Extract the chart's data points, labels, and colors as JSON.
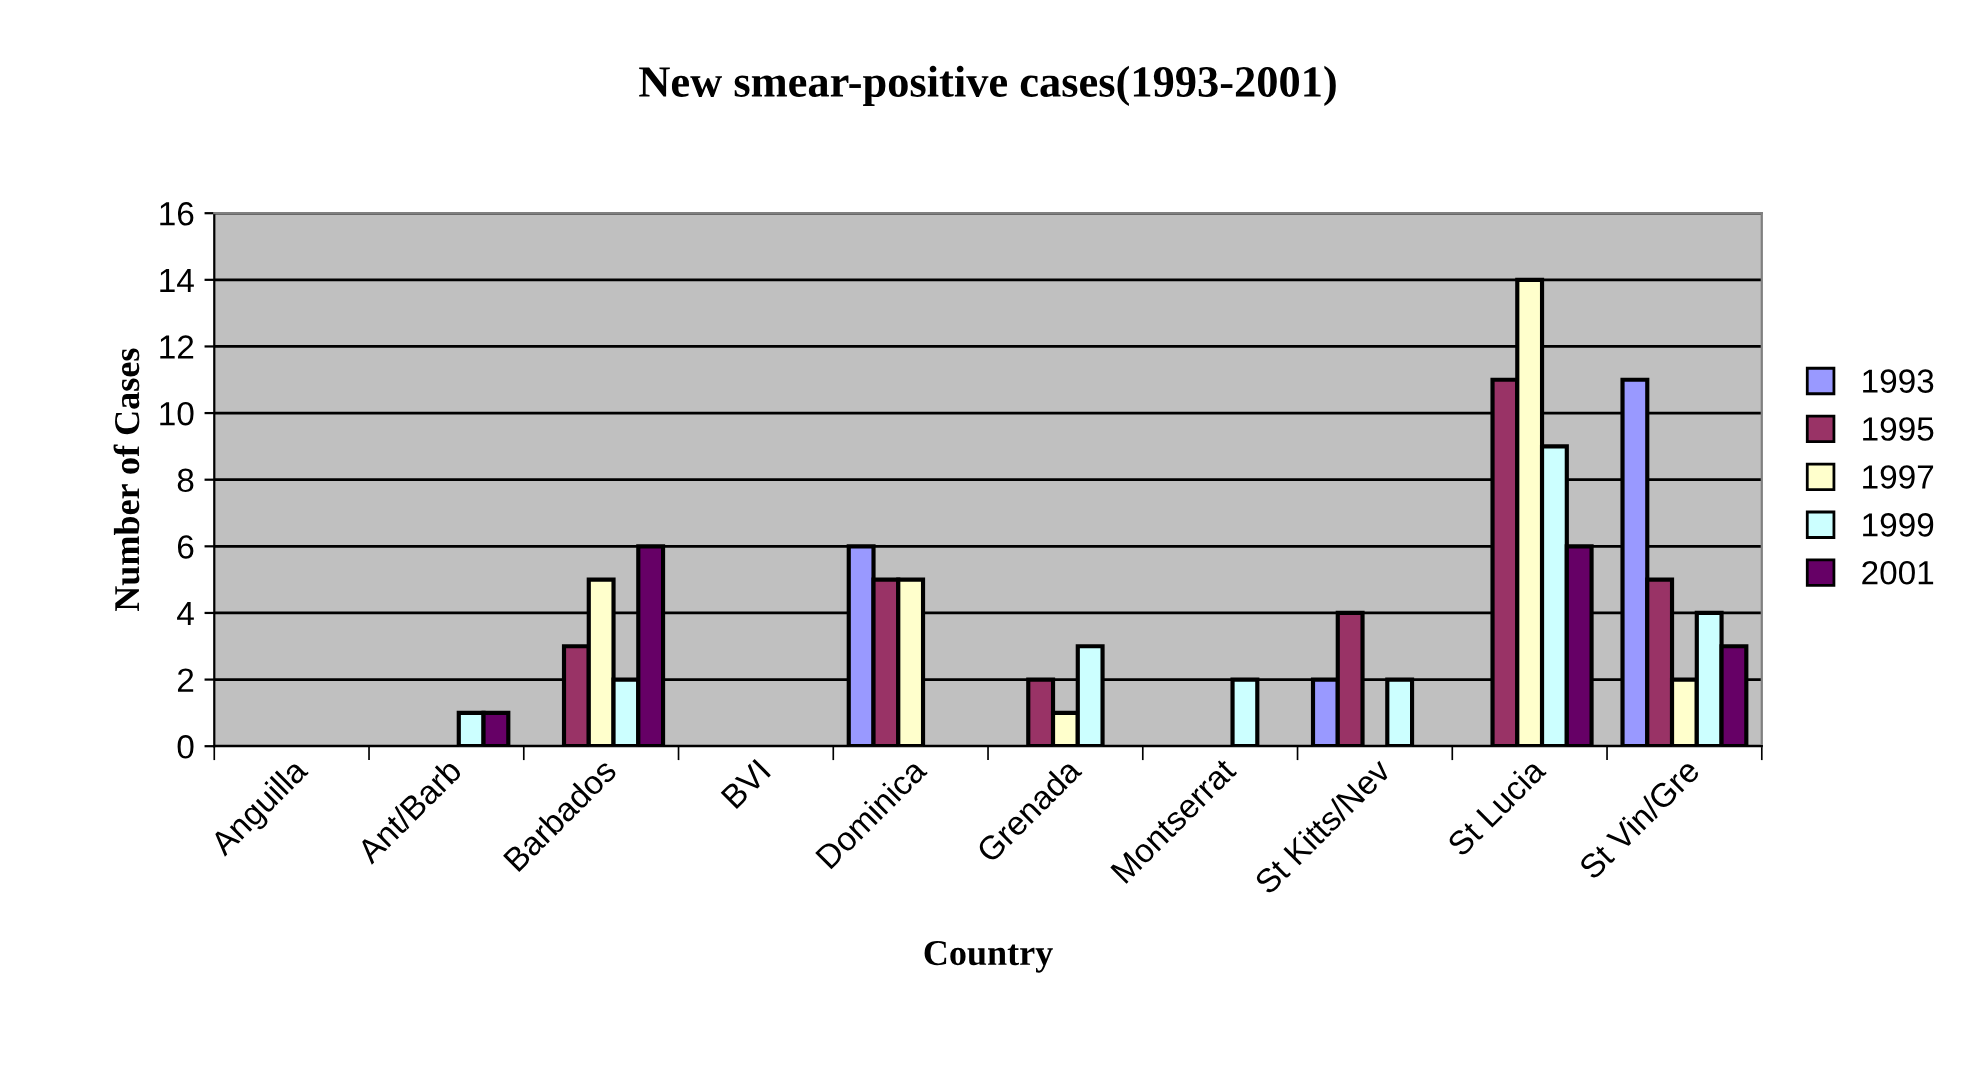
{
  "chart_data": {
    "type": "bar",
    "title": "New smear-positive cases(1993-2001)",
    "xlabel": "Country",
    "ylabel": "Number of Cases",
    "categories": [
      "Anguilla",
      "Ant/Barb",
      "Barbados",
      "BVI",
      "Dominica",
      "Grenada",
      "Montserrat",
      "St Kitts/Nev",
      "St Lucia",
      "St Vin/Gre"
    ],
    "series": [
      {
        "name": "1993",
        "color": "#9999ff",
        "values": [
          null,
          null,
          null,
          null,
          6,
          null,
          null,
          2,
          null,
          11
        ]
      },
      {
        "name": "1995",
        "color": "#993366",
        "values": [
          null,
          null,
          3,
          null,
          5,
          2,
          null,
          4,
          11,
          5
        ]
      },
      {
        "name": "1997",
        "color": "#ffffcc",
        "values": [
          null,
          null,
          5,
          null,
          5,
          1,
          null,
          null,
          14,
          2
        ]
      },
      {
        "name": "1999",
        "color": "#ccffff",
        "values": [
          null,
          1,
          2,
          null,
          null,
          3,
          2,
          2,
          9,
          4
        ]
      },
      {
        "name": "2001",
        "color": "#660066",
        "values": [
          null,
          1,
          6,
          null,
          null,
          null,
          null,
          null,
          6,
          3
        ]
      }
    ],
    "ylim": [
      0,
      16
    ],
    "yticks": [
      0,
      2,
      4,
      6,
      8,
      10,
      12,
      14,
      16
    ],
    "grid": "y",
    "legend": "right"
  }
}
